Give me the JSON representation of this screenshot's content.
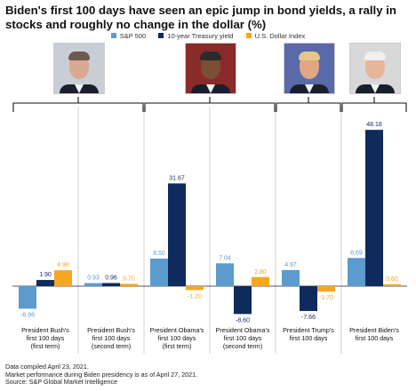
{
  "title": "Biden's first 100 days have seen an epic jump in bond yields, a rally in stocks and roughly no change in the dollar (%)",
  "legend": [
    {
      "name": "S&P 500",
      "color": "#5b9bcd"
    },
    {
      "name": "10-year Treasury yield",
      "color": "#0f2a5c"
    },
    {
      "name": "U.S. Dollar Index",
      "color": "#f5a623"
    }
  ],
  "presidents": [
    {
      "name": "Bush",
      "skin": "#d9a890",
      "hair": "#6d5a4e",
      "bg": "#c9ced6"
    },
    {
      "name": "Obama",
      "skin": "#7a4f35",
      "hair": "#2b2b2b",
      "bg": "#8a2a2a"
    },
    {
      "name": "Trump",
      "skin": "#e1a683",
      "hair": "#e6c689",
      "bg": "#5a6aa8"
    },
    {
      "name": "Biden",
      "skin": "#e6b59c",
      "hair": "#f0f0f0",
      "bg": "#d8d8d8"
    }
  ],
  "chart_data": {
    "type": "bar",
    "categories": [
      "President Bush's first 100 days (first term)",
      "President Bush's first 100 days (second term)",
      "President Obama's first 100 days (first term)",
      "President Obama's first 100 days (second term)",
      "President Trump's first 100 days",
      "President Biden's first 100 days"
    ],
    "series": [
      {
        "name": "S&P 500",
        "values": [
          -6.96,
          0.93,
          8.5,
          7.04,
          4.97,
          8.69
        ]
      },
      {
        "name": "10-year Treasury yield",
        "values": [
          1.9,
          0.96,
          31.67,
          -8.6,
          -7.66,
          48.18
        ]
      },
      {
        "name": "U.S. Dollar Index",
        "values": [
          4.9,
          0.7,
          -1.2,
          2.8,
          -1.7,
          0.6
        ]
      }
    ],
    "data_labels": [
      [
        "-6.96",
        "0.93",
        "8.50",
        "7.04",
        "4.97",
        "8.69"
      ],
      [
        "1.90",
        "0.96",
        "31.67",
        "-8.60",
        "-7.66",
        "48.18"
      ],
      [
        "4.90",
        "0.70",
        "-1.20",
        "2.80",
        "-1.70",
        "0.60"
      ]
    ],
    "category_labels": [
      [
        "President Bush's",
        "first 100 days",
        "(first term)"
      ],
      [
        "President Bush's",
        "first 100 days",
        "(second term)"
      ],
      [
        "President Obama's",
        "first 100 days",
        "(first term)"
      ],
      [
        "President Obama's",
        "first 100 days",
        "(second term)"
      ],
      [
        "President Trump's",
        "first 100 days"
      ],
      [
        "President Biden's",
        "first 100 days"
      ]
    ],
    "groups_per_president": [
      2,
      2,
      1,
      1
    ],
    "ylim": [
      -10,
      50
    ],
    "grid": false,
    "legend_position": "top"
  },
  "notes": [
    "Data compiled April 23, 2021.",
    "Market performance during Biden presidency is as of April 27, 2021.",
    "Source: S&P Global Market Intelligence"
  ]
}
